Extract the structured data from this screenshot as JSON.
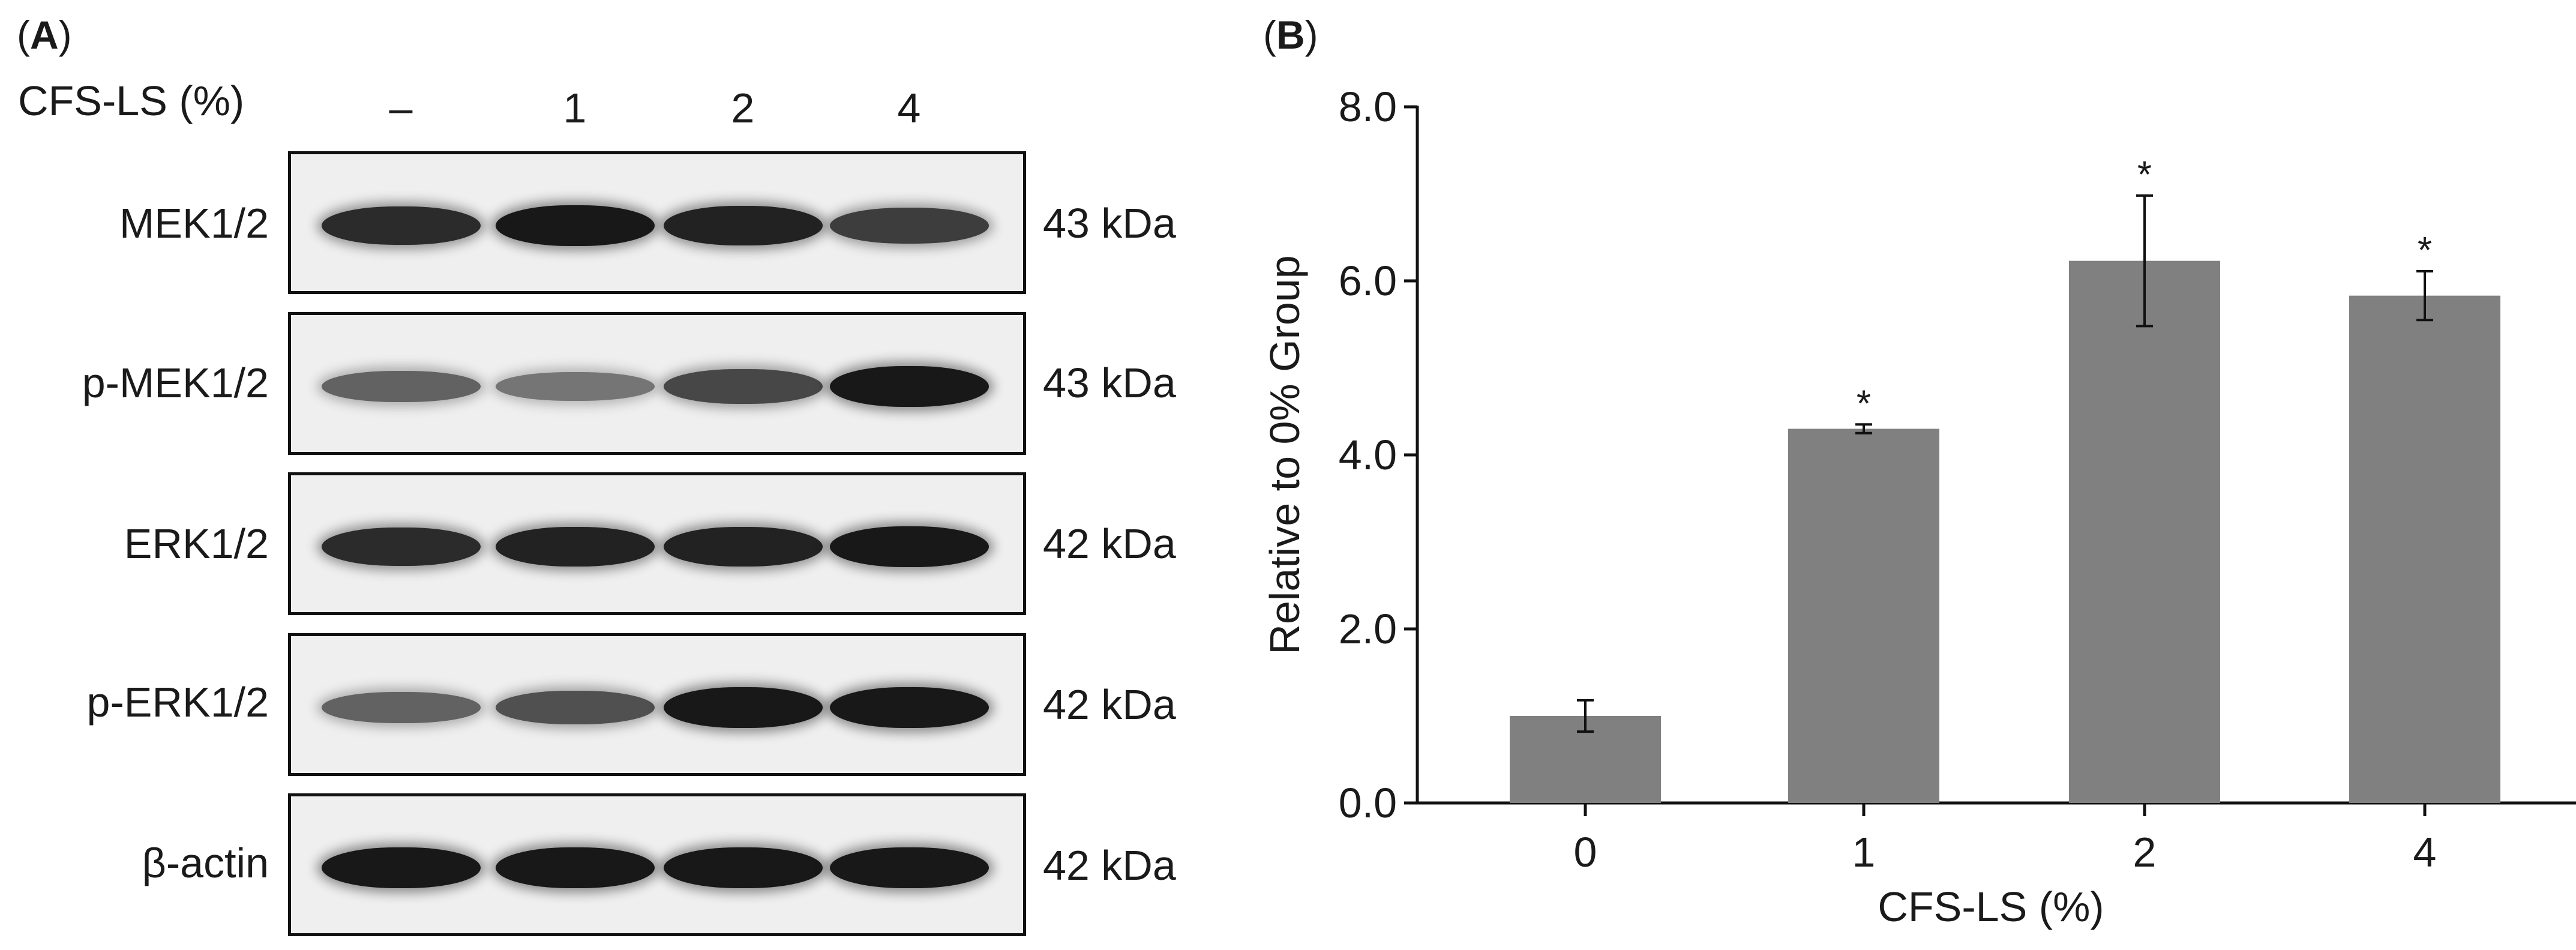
{
  "panel_a": {
    "label_letter": "A",
    "treatment_label": "CFS-LS (%)",
    "lanes": [
      "–",
      "1",
      "2",
      "4"
    ],
    "rows": [
      {
        "protein": "MEK1/2",
        "kda": "43 kDa",
        "band_intensity": [
          0.85,
          0.95,
          0.9,
          0.75
        ]
      },
      {
        "protein": "p-MEK1/2",
        "kda": "43 kDa",
        "band_intensity": [
          0.55,
          0.45,
          0.7,
          0.95
        ]
      },
      {
        "protein": "ERK1/2",
        "kda": "42 kDa",
        "band_intensity": [
          0.85,
          0.9,
          0.9,
          0.95
        ]
      },
      {
        "protein": "p-ERK1/2",
        "kda": "42 kDa",
        "band_intensity": [
          0.55,
          0.65,
          0.95,
          0.95
        ]
      },
      {
        "protein": "β-actin",
        "kda": "42 kDa",
        "band_intensity": [
          0.95,
          0.95,
          0.95,
          0.95
        ]
      }
    ]
  },
  "panel_b": {
    "label_letter": "B"
  },
  "chart_data": {
    "type": "bar",
    "categories": [
      "0",
      "1",
      "2",
      "4"
    ],
    "values": [
      1.0,
      4.3,
      6.23,
      5.83
    ],
    "errors": [
      0.18,
      0.05,
      0.75,
      0.28
    ],
    "significance": [
      "",
      "*",
      "*",
      "*"
    ],
    "xlabel": "CFS-LS (%)",
    "ylabel": "Relative to 0% Group",
    "ylim": [
      0,
      8
    ],
    "yticks": [
      "0.0",
      "2.0",
      "4.0",
      "6.0",
      "8.0"
    ],
    "bar_color": "#808080",
    "grid": false
  }
}
